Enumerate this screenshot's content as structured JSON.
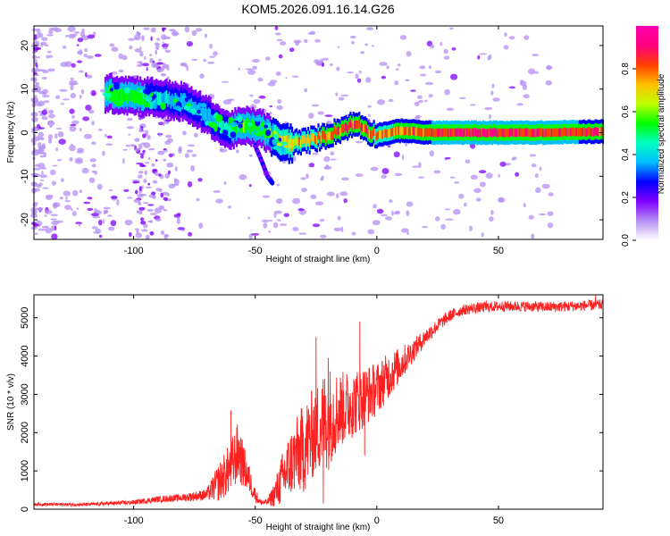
{
  "figure_title": "KOM5.2026.091.16.14.G26",
  "chart_data": [
    {
      "type": "heatmap",
      "title": "KOM5.2026.091.16.14.G26",
      "xlabel": "Height of straight line (km)",
      "ylabel": "Frequency (Hz)",
      "xlim": [
        -141,
        93
      ],
      "ylim": [
        -24.5,
        24.5
      ],
      "x_ticks": [
        -100,
        -50,
        0,
        50
      ],
      "x_tick_labels": [
        "-100",
        "-50",
        "0",
        "50"
      ],
      "y_ticks": [
        -20,
        -10,
        0,
        10,
        20
      ],
      "y_tick_labels": [
        "-20",
        "-10",
        "0",
        "10",
        "20"
      ],
      "ridge": {
        "description": "dominant frequency track vs height",
        "x": [
          -110,
          -100,
          -90,
          -80,
          -70,
          -62,
          -55,
          -48,
          -42,
          -38,
          -30,
          -20,
          -12,
          -8,
          -3,
          0,
          10,
          20,
          30,
          50,
          70,
          93
        ],
        "y": [
          9,
          8.5,
          8,
          7,
          4,
          0.5,
          1.5,
          1.0,
          -1.5,
          -2.5,
          -2,
          -0.5,
          1.5,
          2,
          0,
          -0.5,
          0.5,
          0,
          0,
          0,
          0,
          0.3
        ],
        "amplitude": [
          0.55,
          0.6,
          0.45,
          0.4,
          0.4,
          0.5,
          0.6,
          0.55,
          0.7,
          0.75,
          0.8,
          0.85,
          0.9,
          0.9,
          0.85,
          0.8,
          0.85,
          0.9,
          0.95,
          0.95,
          0.92,
          0.9
        ]
      },
      "branch": {
        "description": "secondary branch near -45 km",
        "x": [
          -50,
          -47,
          -45,
          -43
        ],
        "y": [
          -3,
          -7,
          -10,
          -11.5
        ]
      },
      "colorbar": {
        "label": "Normalized spectral amplitude",
        "range": [
          0,
          1
        ],
        "ticks": [
          0,
          0.2,
          0.4,
          0.6,
          0.8
        ],
        "tick_labels": [
          "0.0",
          "0.2",
          "0.4",
          "0.6",
          "0.8"
        ],
        "stops": [
          "#ffffff",
          "#b68ff4",
          "#7f00ff",
          "#0000ff",
          "#00bfff",
          "#00ffbf",
          "#00ff00",
          "#bfff00",
          "#ffbf00",
          "#ff4000",
          "#ff007f",
          "#ff00b0"
        ]
      }
    },
    {
      "type": "line",
      "xlabel": "Height of straight line (km)",
      "ylabel": "SNR (10 * v/v)",
      "xlim": [
        -141,
        93
      ],
      "ylim": [
        0,
        5600
      ],
      "x_ticks": [
        -100,
        -50,
        0,
        50
      ],
      "x_tick_labels": [
        "-100",
        "-50",
        "0",
        "50"
      ],
      "y_ticks": [
        0,
        1000,
        2000,
        3000,
        4000,
        5000
      ],
      "y_tick_labels": [
        "0",
        "1000",
        "2000",
        "3000",
        "4000",
        "5000"
      ],
      "series": [
        {
          "name": "SNR",
          "color": "#ff2020",
          "x": [
            -141,
            -120,
            -100,
            -90,
            -80,
            -70,
            -65,
            -60,
            -57,
            -55,
            -52,
            -50,
            -48,
            -45,
            -42,
            -38,
            -35,
            -30,
            -25,
            -22,
            -20,
            -18,
            -15,
            -10,
            -5,
            0,
            5,
            10,
            15,
            20,
            25,
            30,
            35,
            40,
            50,
            60,
            70,
            80,
            93
          ],
          "values": [
            130,
            120,
            180,
            260,
            300,
            380,
            700,
            1100,
            1500,
            1150,
            700,
            380,
            180,
            180,
            400,
            900,
            1250,
            1600,
            2100,
            2300,
            2400,
            2500,
            2600,
            2750,
            2950,
            3150,
            3500,
            3800,
            4150,
            4500,
            4800,
            5050,
            5200,
            5250,
            5300,
            5300,
            5280,
            5300,
            5340
          ],
          "noise": [
            40,
            40,
            60,
            80,
            100,
            150,
            500,
            700,
            800,
            600,
            350,
            200,
            80,
            80,
            350,
            800,
            900,
            1200,
            1200,
            1300,
            1400,
            1200,
            1000,
            900,
            800,
            700,
            600,
            450,
            300,
            220,
            180,
            150,
            140,
            140,
            140,
            140,
            140,
            140,
            140
          ],
          "spikes": [
            [
              -60,
              2580
            ],
            [
              -62,
              1000
            ],
            [
              -55,
              1600
            ],
            [
              -25,
              4500
            ],
            [
              -22,
              150
            ],
            [
              -20,
              3950
            ],
            [
              -10,
              3050
            ],
            [
              -7,
              4900
            ],
            [
              -5,
              1700
            ],
            [
              -5,
              1400
            ],
            [
              30,
              5000
            ],
            [
              45,
              5450
            ],
            [
              90,
              5600
            ]
          ]
        }
      ]
    }
  ]
}
